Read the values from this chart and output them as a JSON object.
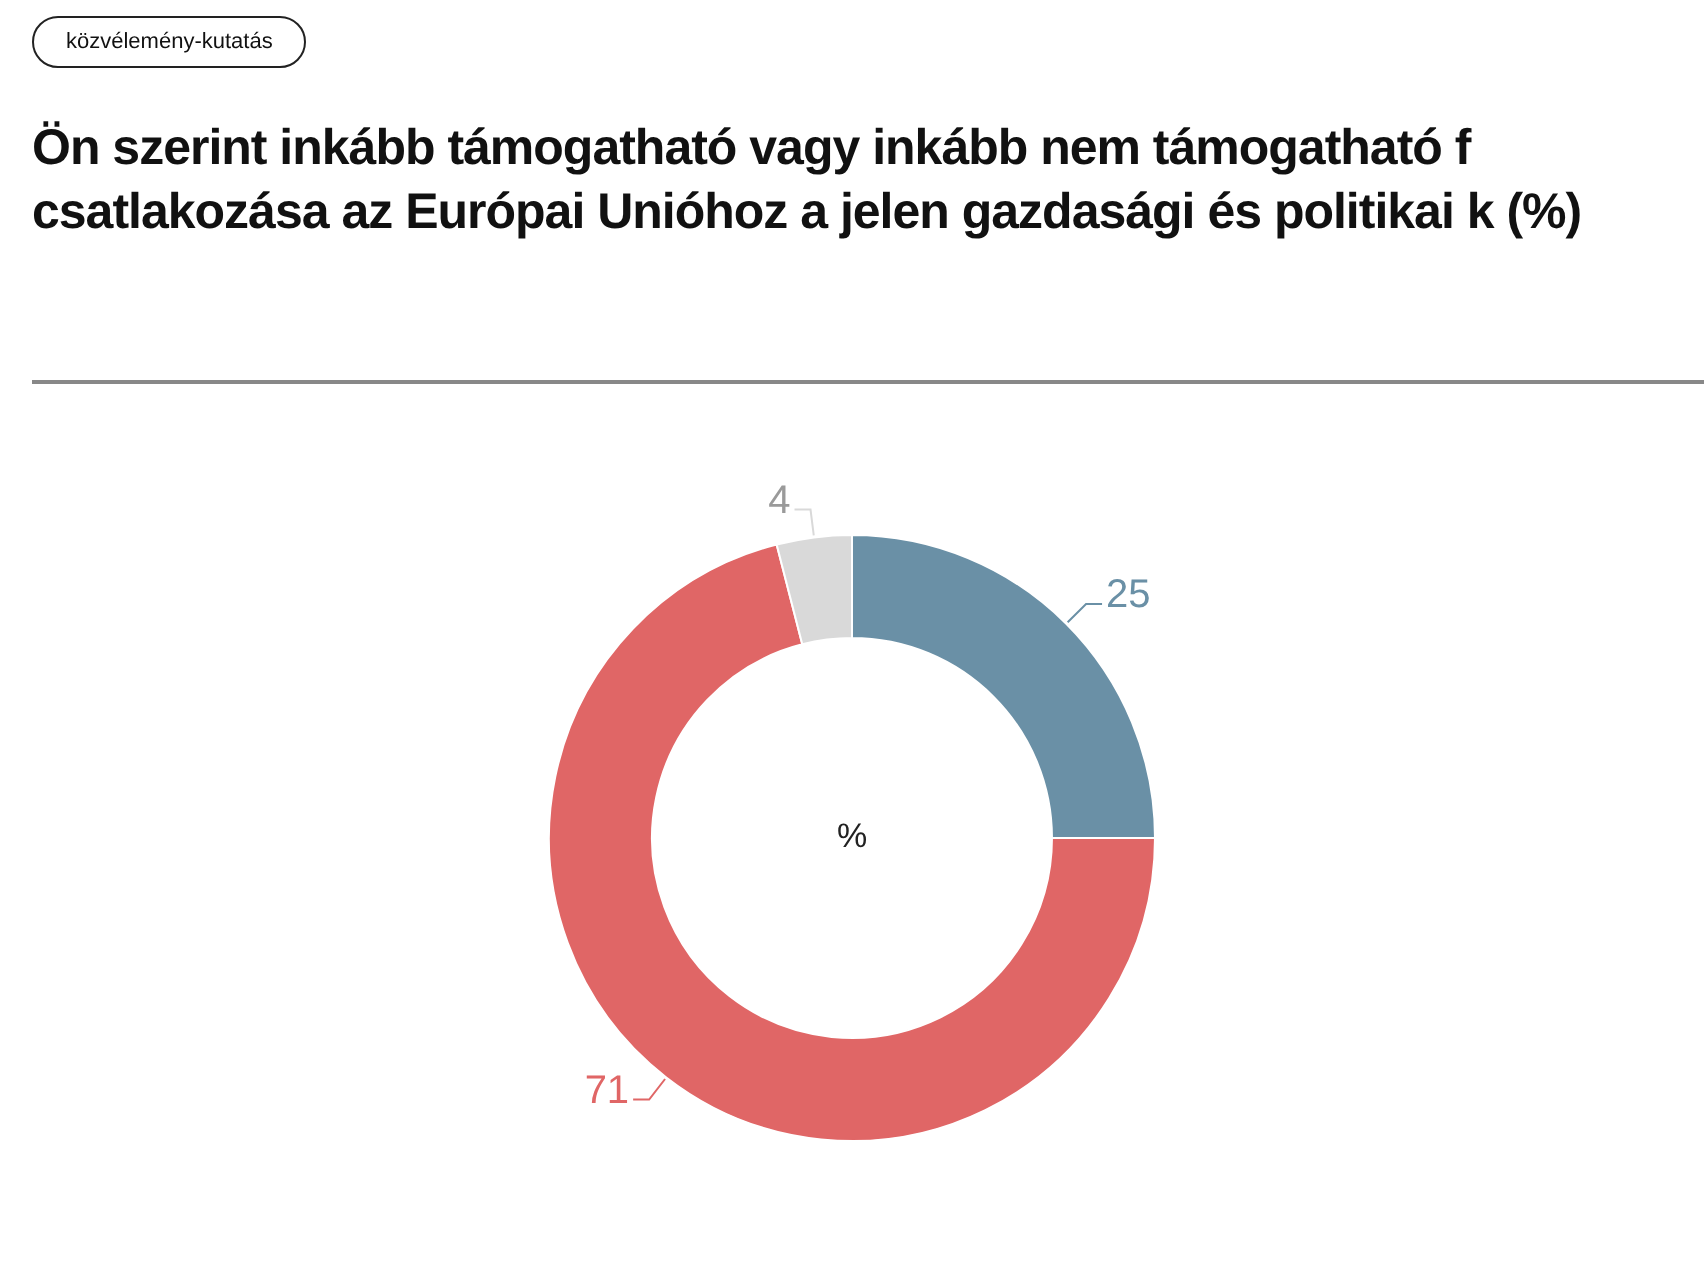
{
  "chart_data": {
    "type": "donut",
    "title": "Ön szerint inkább támogatható vagy inkább nem támogatható f csatlakozása az Európai Unióhoz a jelen gazdasági és politikai k (%)",
    "annotations": [
      "közvélemény-kutatás",
      "%"
    ],
    "categories": [
      null,
      null,
      null
    ],
    "values": [
      25,
      71,
      4
    ],
    "colors": [
      "#6a90a6",
      "#e06666",
      "#d9d9d9"
    ],
    "data_labels": true,
    "legend": false
  }
}
